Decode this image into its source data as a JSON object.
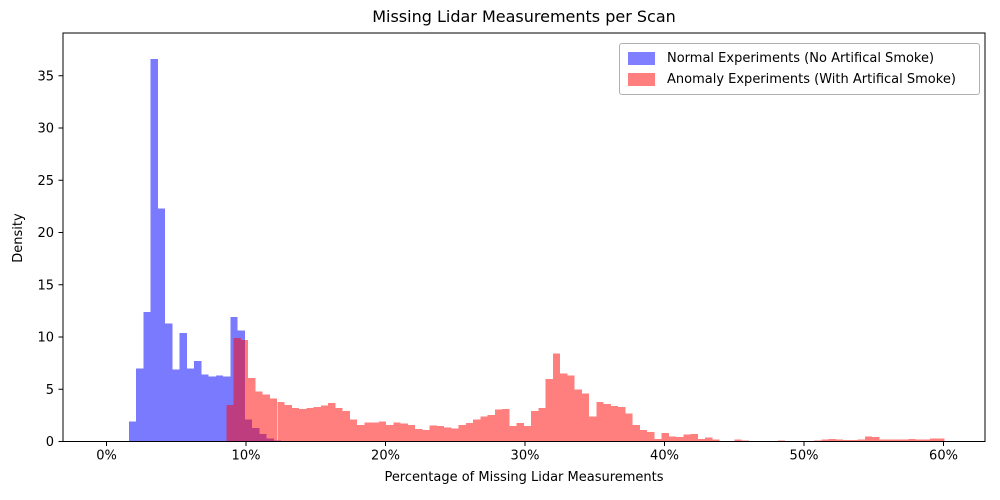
{
  "figure": {
    "title": "Missing Lidar Measurements per Scan",
    "xlabel": "Percentage of Missing Lidar Measurements",
    "ylabel": "Density"
  },
  "legend": {
    "position": "upper right",
    "items": [
      {
        "label": "Normal Experiments (No Artifical Smoke)",
        "color": "#7f7fff"
      },
      {
        "label": "Anomaly Experiments (With Artifical Smoke)",
        "color": "#ff7f7f"
      }
    ]
  },
  "chart_data": {
    "type": "bar",
    "subtype": "overlaid-histogram",
    "title": "Missing Lidar Measurements per Scan",
    "xlabel": "Percentage of Missing Lidar Measurements",
    "ylabel": "Density",
    "x_tick_values": [
      0,
      10,
      20,
      30,
      40,
      50,
      60
    ],
    "x_tick_labels": [
      "0%",
      "10%",
      "20%",
      "30%",
      "40%",
      "50%",
      "60%"
    ],
    "y_ticks": [
      0,
      5,
      10,
      15,
      20,
      25,
      30,
      35
    ],
    "xlim": [
      -3.1,
      63.0
    ],
    "ylim": [
      0,
      39.1
    ],
    "grid": false,
    "legend_position": "upper right",
    "series": [
      {
        "name": "Normal Experiments (No Artifical Smoke)",
        "fill": "#0000ff",
        "fill_opacity": 0.52,
        "bin_start_pct": 1.6,
        "bin_width_pct": 0.52,
        "densities": [
          1.9,
          7.0,
          12.4,
          36.6,
          22.3,
          11.3,
          6.9,
          10.4,
          7.0,
          7.7,
          6.4,
          6.2,
          6.3,
          6.2,
          11.9,
          10.6,
          2.1,
          1.3,
          0.7,
          0.3,
          0.1
        ]
      },
      {
        "name": "Anomaly Experiments (With Artifical Smoke)",
        "fill": "#ff0000",
        "fill_opacity": 0.5,
        "bin_start_pct": 8.6,
        "bin_width_pct": 0.52,
        "densities": [
          3.5,
          9.9,
          9.7,
          6.1,
          4.8,
          4.5,
          4.1,
          3.8,
          3.5,
          3.2,
          3.1,
          3.2,
          3.3,
          3.45,
          3.7,
          3.2,
          2.9,
          2.1,
          1.6,
          1.84,
          1.84,
          1.9,
          1.6,
          1.84,
          1.7,
          1.6,
          1.2,
          1.1,
          1.55,
          1.5,
          1.35,
          1.25,
          1.6,
          1.75,
          2.1,
          2.4,
          2.55,
          3.05,
          3.1,
          1.5,
          1.75,
          1.5,
          2.9,
          3.2,
          6.0,
          8.4,
          6.5,
          6.3,
          5.0,
          4.6,
          2.4,
          3.8,
          3.6,
          3.4,
          3.3,
          2.7,
          1.6,
          1.1,
          0.9,
          0.26,
          0.8,
          0.5,
          0.45,
          0.65,
          0.7,
          0.26,
          0.4,
          0.2,
          0.06,
          0.06,
          0.2,
          0.1,
          0.04,
          0.04,
          0.04,
          0.04,
          0.12,
          0.05,
          0.04,
          0.04,
          0.04,
          0.08,
          0.2,
          0.22,
          0.2,
          0.15,
          0.15,
          0.2,
          0.5,
          0.45,
          0.2,
          0.17,
          0.17,
          0.17,
          0.25,
          0.2,
          0.18,
          0.3,
          0.3,
          0.06
        ]
      }
    ]
  }
}
